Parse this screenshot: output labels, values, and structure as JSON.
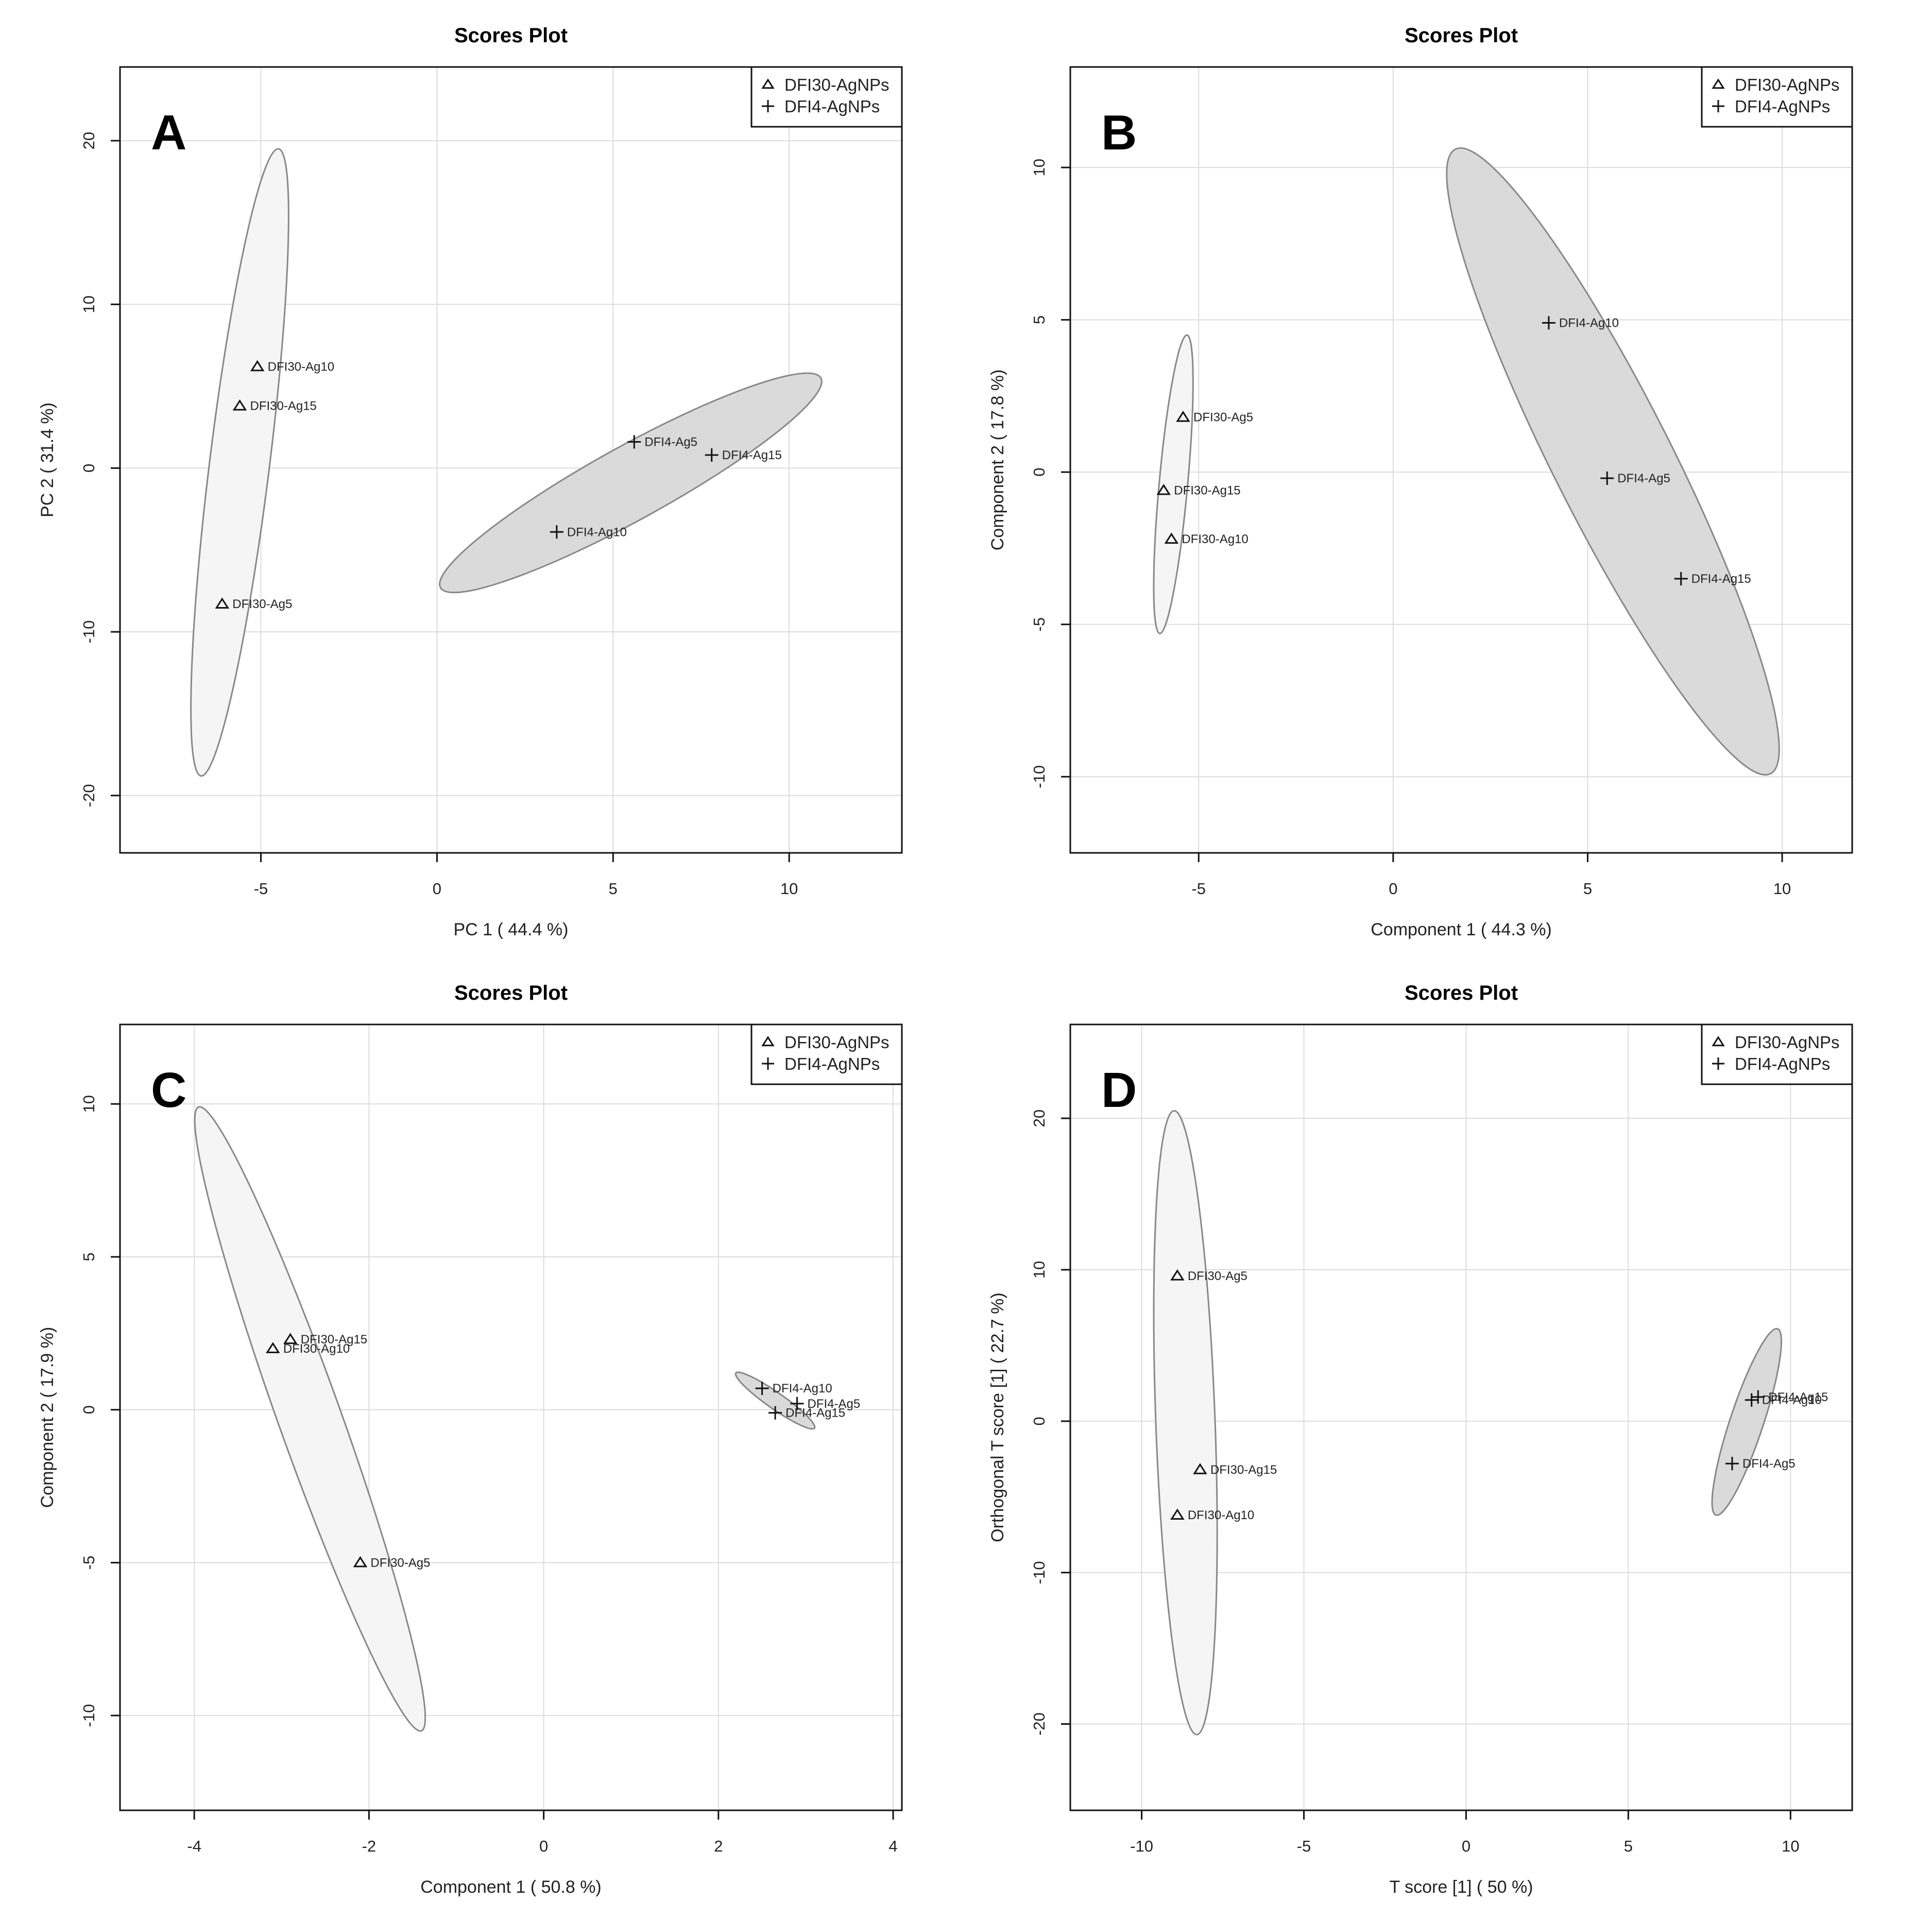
{
  "chart_data": [
    {
      "type": "scatter",
      "panel_letter": "A",
      "title": "Scores Plot",
      "xlabel": "PC 1 ( 44.4 %)",
      "ylabel": "PC 2 ( 31.4 %)",
      "xlim": [
        -9,
        13.2
      ],
      "ylim": [
        -23.5,
        24.5
      ],
      "xticks": [
        -5,
        0,
        5,
        10
      ],
      "yticks": [
        -20,
        -10,
        0,
        10,
        20
      ],
      "legend": {
        "position": "top-right",
        "entries": [
          {
            "marker": "triangle",
            "label": "DFI30-AgNPs"
          },
          {
            "marker": "plus",
            "label": "DFI4-AgNPs"
          }
        ]
      },
      "series": [
        {
          "name": "DFI30-AgNPs",
          "marker": "triangle",
          "points": [
            {
              "x": -5.1,
              "y": 6.2,
              "label": "DFI30-Ag10"
            },
            {
              "x": -5.6,
              "y": 3.8,
              "label": "DFI30-Ag15"
            },
            {
              "x": -6.1,
              "y": -8.3,
              "label": "DFI30-Ag5"
            }
          ],
          "ellipse": [
            {
              "x": -4.5,
              "y": 19.5
            },
            {
              "x": -6.7,
              "y": -18.8
            }
          ]
        },
        {
          "name": "DFI4-AgNPs",
          "marker": "plus",
          "points": [
            {
              "x": 5.6,
              "y": 1.6,
              "label": "DFI4-Ag5"
            },
            {
              "x": 7.8,
              "y": 0.8,
              "label": "DFI4-Ag15"
            },
            {
              "x": 3.4,
              "y": -3.9,
              "label": "DFI4-Ag10"
            }
          ],
          "ellipse": [
            {
              "x": 10.9,
              "y": 5.5
            },
            {
              "x": 0.1,
              "y": -7.3
            }
          ]
        }
      ]
    },
    {
      "type": "scatter",
      "panel_letter": "B",
      "title": "Scores Plot",
      "xlabel": "Component 1 ( 44.3 %)",
      "ylabel": "Component 2 ( 17.8 %)",
      "xlim": [
        -8.3,
        11.8
      ],
      "ylim": [
        -12.5,
        13.3
      ],
      "xticks": [
        -5,
        0,
        5,
        10
      ],
      "yticks": [
        -10,
        -5,
        0,
        5,
        10
      ],
      "legend": {
        "position": "top-right",
        "entries": [
          {
            "marker": "triangle",
            "label": "DFI30-AgNPs"
          },
          {
            "marker": "plus",
            "label": "DFI4-AgNPs"
          }
        ]
      },
      "series": [
        {
          "name": "DFI30-AgNPs",
          "marker": "triangle",
          "points": [
            {
              "x": -5.4,
              "y": 1.8,
              "label": "DFI30-Ag5"
            },
            {
              "x": -5.9,
              "y": -0.6,
              "label": "DFI30-Ag15"
            },
            {
              "x": -5.7,
              "y": -2.2,
              "label": "DFI30-Ag10"
            }
          ],
          "ellipse": [
            {
              "x": -5.3,
              "y": 4.5
            },
            {
              "x": -6.0,
              "y": -5.3
            }
          ]
        },
        {
          "name": "DFI4-AgNPs",
          "marker": "plus",
          "points": [
            {
              "x": 4.0,
              "y": 4.9,
              "label": "DFI4-Ag10"
            },
            {
              "x": 5.5,
              "y": -0.2,
              "label": "DFI4-Ag5"
            },
            {
              "x": 7.4,
              "y": -3.5,
              "label": "DFI4-Ag15"
            }
          ],
          "ellipse": [
            {
              "x": 1.6,
              "y": 10.6
            },
            {
              "x": 9.7,
              "y": -9.9
            }
          ]
        }
      ]
    },
    {
      "type": "scatter",
      "panel_letter": "C",
      "title": "Scores Plot",
      "xlabel": "Component 1 ( 50.8 %)",
      "ylabel": "Component 2 ( 17.9 %)",
      "xlim": [
        -4.85,
        4.1
      ],
      "ylim": [
        -13.1,
        12.6
      ],
      "xticks": [
        -4,
        -2,
        0,
        2,
        4
      ],
      "yticks": [
        -10,
        -5,
        0,
        5,
        10
      ],
      "legend": {
        "position": "top-right",
        "entries": [
          {
            "marker": "triangle",
            "label": "DFI30-AgNPs"
          },
          {
            "marker": "plus",
            "label": "DFI4-AgNPs"
          }
        ]
      },
      "series": [
        {
          "name": "DFI30-AgNPs",
          "marker": "triangle",
          "points": [
            {
              "x": -2.9,
              "y": 2.3,
              "label": "DFI30-Ag15"
            },
            {
              "x": -3.1,
              "y": 2.0,
              "label": "DFI30-Ag10"
            },
            {
              "x": -2.1,
              "y": -5.0,
              "label": "DFI30-Ag5"
            }
          ],
          "ellipse": [
            {
              "x": -3.95,
              "y": 9.9
            },
            {
              "x": -1.4,
              "y": -10.5
            }
          ]
        },
        {
          "name": "DFI4-AgNPs",
          "marker": "plus",
          "points": [
            {
              "x": 2.5,
              "y": 0.7,
              "label": "DFI4-Ag10"
            },
            {
              "x": 2.9,
              "y": 0.2,
              "label": "DFI4-Ag5"
            },
            {
              "x": 2.65,
              "y": -0.1,
              "label": "DFI4-Ag15"
            }
          ],
          "ellipse": [
            {
              "x": 2.2,
              "y": 1.2
            },
            {
              "x": 3.1,
              "y": -0.6
            }
          ]
        }
      ]
    },
    {
      "type": "scatter",
      "panel_letter": "D",
      "title": "Scores Plot",
      "xlabel": "T score [1] ( 50 %)",
      "ylabel": "Orthogonal T score [1] ( 22.7 %)",
      "xlim": [
        -12.2,
        11.9
      ],
      "ylim": [
        -25.7,
        26.2
      ],
      "xticks": [
        -10,
        -5,
        0,
        5,
        10
      ],
      "yticks": [
        -20,
        -10,
        0,
        10,
        20
      ],
      "legend": {
        "position": "top-right",
        "entries": [
          {
            "marker": "triangle",
            "label": "DFI30-AgNPs"
          },
          {
            "marker": "plus",
            "label": "DFI4-AgNPs"
          }
        ]
      },
      "series": [
        {
          "name": "DFI30-AgNPs",
          "marker": "triangle",
          "points": [
            {
              "x": -8.9,
              "y": 9.6,
              "label": "DFI30-Ag5"
            },
            {
              "x": -8.2,
              "y": -3.2,
              "label": "DFI30-Ag15"
            },
            {
              "x": -8.9,
              "y": -6.2,
              "label": "DFI30-Ag10"
            }
          ],
          "ellipse": [
            {
              "x": -9.0,
              "y": 20.5
            },
            {
              "x": -8.3,
              "y": -20.7
            }
          ]
        },
        {
          "name": "DFI4-AgNPs",
          "marker": "plus",
          "points": [
            {
              "x": 9.0,
              "y": 1.6,
              "label": "DFI4-Ag15"
            },
            {
              "x": 8.8,
              "y": 1.4,
              "label": "DFI4-Ag10"
            },
            {
              "x": 8.2,
              "y": -2.8,
              "label": "DFI4-Ag5"
            }
          ],
          "ellipse": [
            {
              "x": 9.6,
              "y": 6.1
            },
            {
              "x": 7.7,
              "y": -6.2
            }
          ]
        }
      ]
    }
  ]
}
